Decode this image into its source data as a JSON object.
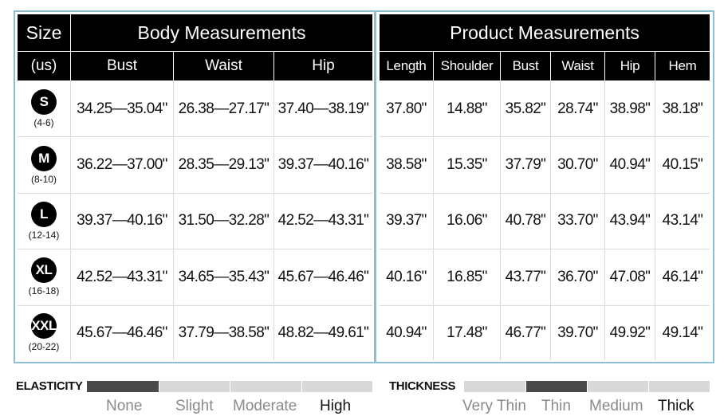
{
  "body_table": {
    "size_header": "Size",
    "size_unit": "(us)",
    "title": "Body Measurements",
    "columns": [
      "Bust",
      "Waist",
      "Hip"
    ],
    "rows": [
      {
        "size": "S",
        "range": "(4-6)",
        "values": [
          "34.25—35.04\"",
          "26.38—27.17\"",
          "37.40—38.19\""
        ]
      },
      {
        "size": "M",
        "range": "(8-10)",
        "values": [
          "36.22—37.00\"",
          "28.35—29.13\"",
          "39.37—40.16\""
        ]
      },
      {
        "size": "L",
        "range": "(12-14)",
        "values": [
          "39.37—40.16\"",
          "31.50—32.28\"",
          "42.52—43.31\""
        ]
      },
      {
        "size": "XL",
        "range": "(16-18)",
        "values": [
          "42.52—43.31\"",
          "34.65—35.43\"",
          "45.67—46.46\""
        ]
      },
      {
        "size": "XXL",
        "range": "(20-22)",
        "values": [
          "45.67—46.46\"",
          "37.79—38.58\"",
          "48.82—49.61\""
        ]
      }
    ]
  },
  "product_table": {
    "title": "Product Measurements",
    "columns": [
      "Length",
      "Shoulder",
      "Bust",
      "Waist",
      "Hip",
      "Hem"
    ],
    "rows": [
      [
        "37.80\"",
        "14.88\"",
        "35.82\"",
        "28.74\"",
        "38.98\"",
        "38.18\""
      ],
      [
        "38.58\"",
        "15.35\"",
        "37.79\"",
        "30.70\"",
        "40.94\"",
        "40.15\""
      ],
      [
        "39.37\"",
        "16.06\"",
        "40.78\"",
        "33.70\"",
        "43.94\"",
        "43.14\""
      ],
      [
        "40.16\"",
        "16.85\"",
        "43.77\"",
        "36.70\"",
        "47.08\"",
        "46.14\""
      ],
      [
        "40.94\"",
        "17.48\"",
        "46.77\"",
        "39.70\"",
        "49.92\"",
        "49.14\""
      ]
    ]
  },
  "elasticity": {
    "title": "ELASTICITY",
    "levels": [
      "None",
      "Slight",
      "Moderate",
      "High"
    ],
    "selected": "None"
  },
  "thickness": {
    "title": "THICKNESS",
    "levels": [
      "Very Thin",
      "Thin",
      "Medium",
      "Thick"
    ],
    "selected": "Thin"
  },
  "colors": {
    "header_bg": "#000000",
    "panel_border": "#8dbfd4",
    "scale_active": "#4a4a4a",
    "scale_inactive": "#d8d8d8"
  }
}
